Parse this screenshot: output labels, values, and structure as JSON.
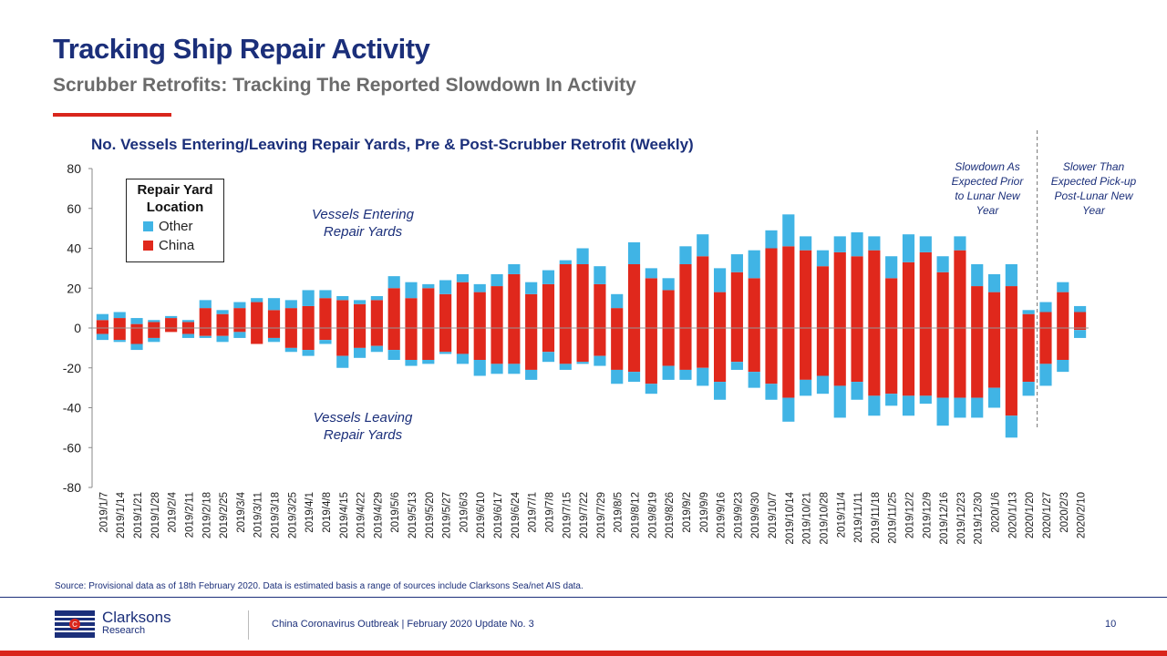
{
  "header": {
    "title": "Tracking Ship Repair Activity",
    "subtitle": "Scrubber Retrofits: Tracking The Reported Slowdown In Activity"
  },
  "chart_data": {
    "type": "bar",
    "stacked": true,
    "title": "No. Vessels Entering/Leaving Repair Yards, Pre & Post-Scrubber Retrofit (Weekly)",
    "ylim": [
      -80,
      80
    ],
    "yticks": [
      80,
      60,
      40,
      20,
      0,
      -20,
      -40,
      -60,
      -80
    ],
    "categories": [
      "2019/1/7",
      "2019/1/14",
      "2019/1/21",
      "2019/1/28",
      "2019/2/4",
      "2019/2/11",
      "2019/2/18",
      "2019/2/25",
      "2019/3/4",
      "2019/3/11",
      "2019/3/18",
      "2019/3/25",
      "2019/4/1",
      "2019/4/8",
      "2019/4/15",
      "2019/4/22",
      "2019/4/29",
      "2019/5/6",
      "2019/5/13",
      "2019/5/20",
      "2019/5/27",
      "2019/6/3",
      "2019/6/10",
      "2019/6/17",
      "2019/6/24",
      "2019/7/1",
      "2019/7/8",
      "2019/7/15",
      "2019/7/22",
      "2019/7/29",
      "2019/8/5",
      "2019/8/12",
      "2019/8/19",
      "2019/8/26",
      "2019/9/2",
      "2019/9/9",
      "2019/9/16",
      "2019/9/23",
      "2019/9/30",
      "2019/10/7",
      "2019/10/14",
      "2019/10/21",
      "2019/10/28",
      "2019/11/4",
      "2019/11/11",
      "2019/11/18",
      "2019/11/25",
      "2019/12/2",
      "2019/12/9",
      "2019/12/16",
      "2019/12/23",
      "2019/12/30",
      "2020/1/6",
      "2020/1/13",
      "2020/1/20",
      "2020/1/27",
      "2020/2/3",
      "2020/2/10"
    ],
    "series": [
      {
        "name": "China",
        "color": "#e0281c",
        "entering": [
          4,
          5,
          2,
          3,
          5,
          3,
          10,
          7,
          10,
          13,
          9,
          10,
          11,
          15,
          14,
          12,
          14,
          20,
          15,
          20,
          17,
          23,
          18,
          21,
          27,
          17,
          22,
          32,
          32,
          22,
          10,
          32,
          25,
          19,
          32,
          36,
          18,
          28,
          25,
          40,
          41,
          39,
          31,
          38,
          36,
          39,
          25,
          33,
          38,
          28,
          39,
          21,
          18,
          21,
          7,
          8,
          18,
          8
        ],
        "leaving": [
          -3,
          -6,
          -8,
          -5,
          -2,
          -3,
          -4,
          -4,
          -2,
          -8,
          -5,
          -10,
          -11,
          -6,
          -14,
          -10,
          -9,
          -11,
          -16,
          -16,
          -12,
          -13,
          -16,
          -18,
          -18,
          -21,
          -12,
          -18,
          -17,
          -14,
          -21,
          -22,
          -28,
          -19,
          -21,
          -20,
          -27,
          -17,
          -22,
          -28,
          -35,
          -26,
          -24,
          -29,
          -27,
          -34,
          -33,
          -34,
          -34,
          -35,
          -35,
          -35,
          -30,
          -44,
          -27,
          -18,
          -16,
          -1
        ]
      },
      {
        "name": "Other",
        "color": "#40b4e5",
        "entering": [
          3,
          3,
          3,
          1,
          1,
          1,
          4,
          2,
          3,
          2,
          6,
          4,
          8,
          4,
          2,
          2,
          2,
          6,
          8,
          2,
          7,
          4,
          4,
          6,
          5,
          6,
          7,
          2,
          8,
          9,
          7,
          11,
          5,
          6,
          9,
          11,
          12,
          9,
          14,
          9,
          16,
          7,
          8,
          8,
          12,
          7,
          11,
          14,
          8,
          8,
          7,
          11,
          9,
          11,
          2,
          5,
          5,
          3
        ],
        "leaving": [
          -3,
          -1,
          -3,
          -2,
          0,
          -2,
          -1,
          -3,
          -3,
          0,
          -2,
          -2,
          -3,
          -2,
          -6,
          -5,
          -3,
          -5,
          -3,
          -2,
          -1,
          -5,
          -8,
          -5,
          -5,
          -5,
          -5,
          -3,
          -1,
          -5,
          -7,
          -5,
          -5,
          -7,
          -5,
          -9,
          -9,
          -4,
          -8,
          -8,
          -12,
          -8,
          -9,
          -16,
          -9,
          -10,
          -6,
          -10,
          -4,
          -14,
          -10,
          -10,
          -10,
          -11,
          -7,
          -11,
          -6,
          -4
        ]
      }
    ],
    "legend": {
      "title": [
        "Repair Yard",
        "Location"
      ],
      "items": [
        "Other",
        "China"
      ],
      "position": "top-left"
    },
    "annotations": {
      "entering": [
        "Vessels Entering",
        "Repair Yards"
      ],
      "leaving": [
        "Vessels Leaving",
        "Repair Yards"
      ],
      "pre_lunar": [
        "Slowdown As",
        "Expected Prior",
        "to Lunar New",
        "Year"
      ],
      "post_lunar": [
        "Slower Than",
        "Expected Pick-up",
        "Post-Lunar New",
        "Year"
      ]
    }
  },
  "footer": {
    "source": "Source: Provisional data as of 18th February 2020. Data is estimated basis a range of sources include Clarksons Sea/net AIS data.",
    "logo_line1": "Clarksons",
    "logo_line2": "Research",
    "publication": "China Coronavirus Outbreak | February 2020 Update No. 3",
    "page_number": "10"
  }
}
